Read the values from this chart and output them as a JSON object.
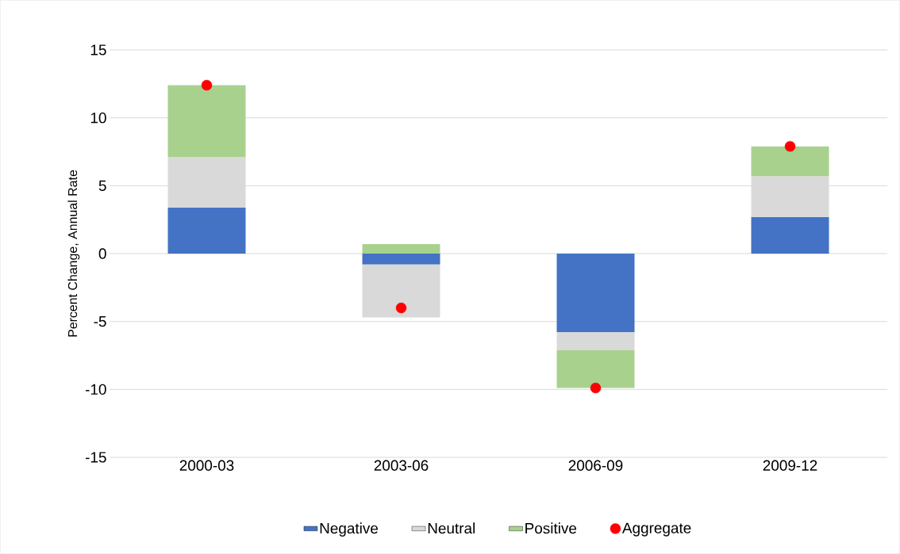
{
  "chart_data": {
    "type": "bar",
    "stacked": true,
    "ylabel": "Percent Change, Annual Rate",
    "categories": [
      "2000-03",
      "2003-06",
      "2006-09",
      "2009-12"
    ],
    "ylim": [
      -15,
      15
    ],
    "yticks": [
      -15,
      -10,
      -5,
      0,
      5,
      10,
      15
    ],
    "grid": "y",
    "legend": "bottom",
    "marker": "circle",
    "series": [
      {
        "name": "Negative",
        "color": "#4472c4",
        "values": [
          3.4,
          -0.8,
          -5.8,
          2.7
        ]
      },
      {
        "name": "Neutral",
        "color": "#d9d9d9",
        "values": [
          3.7,
          -3.9,
          -1.3,
          3.0
        ]
      },
      {
        "name": "Positive",
        "color": "#a9d18e",
        "values": [
          5.3,
          0.7,
          -2.8,
          2.2
        ]
      },
      {
        "name": "Aggregate",
        "type": "scatter",
        "color": "#ff0000",
        "values": [
          12.4,
          -4.0,
          -9.9,
          7.9
        ]
      }
    ]
  }
}
